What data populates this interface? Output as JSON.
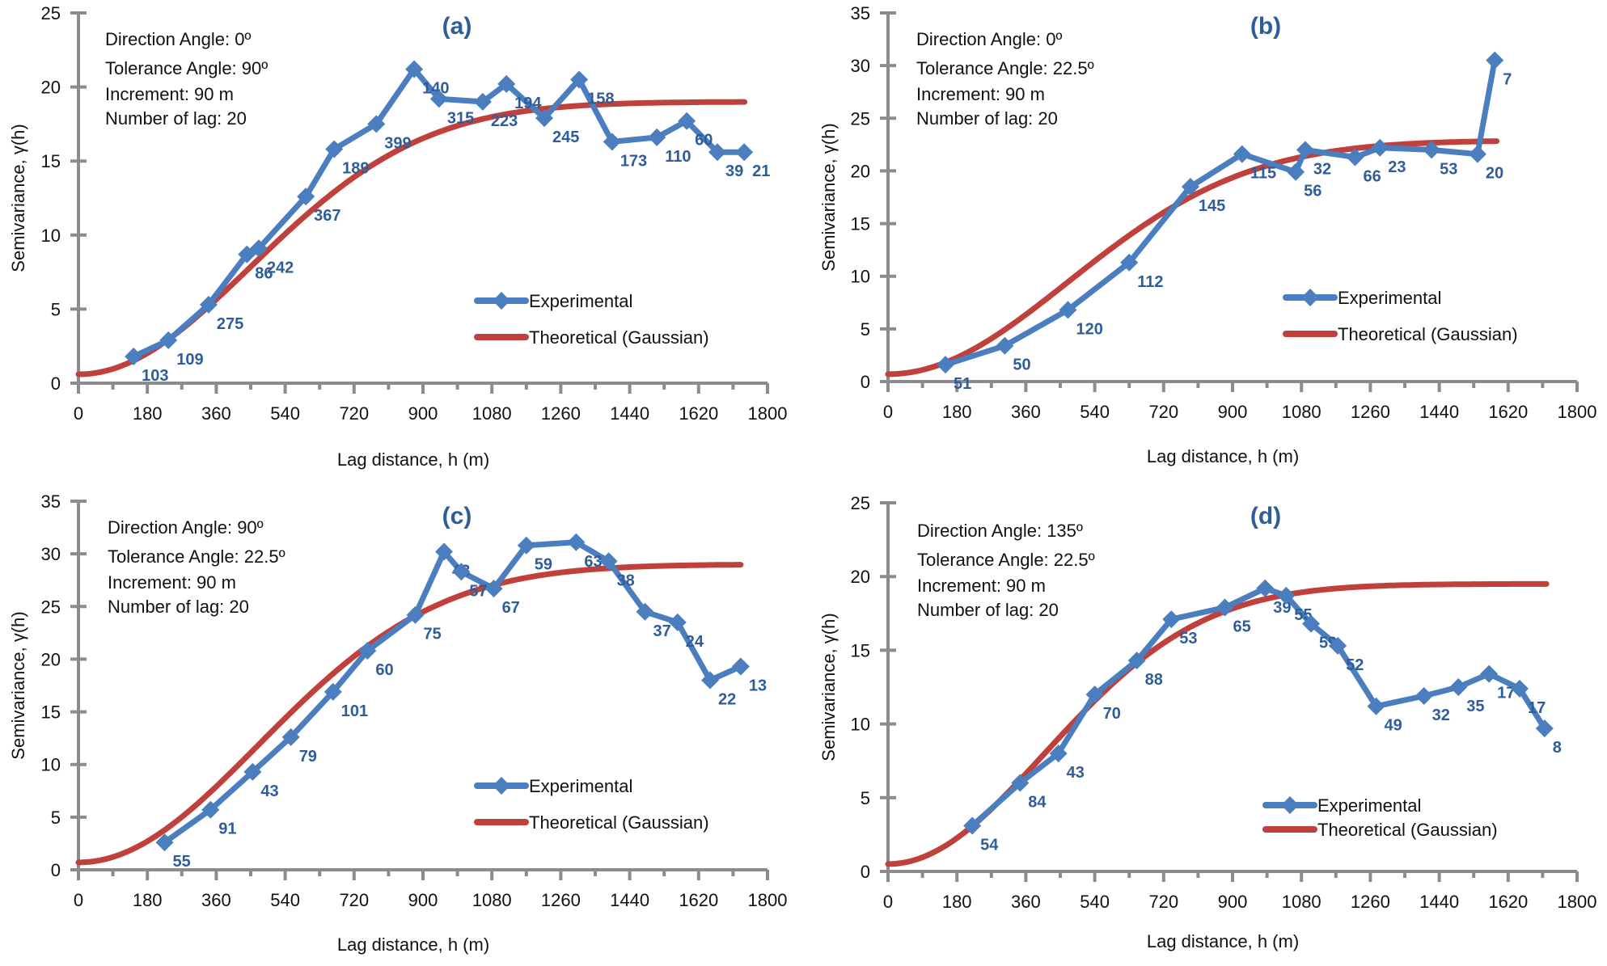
{
  "chart_data": [
    {
      "type": "line",
      "title": "(a)",
      "xlabel": "Lag distance, h (m)",
      "ylabel": "Semivariance, γ(h)",
      "xlim": [
        0,
        1800
      ],
      "ylim": [
        0,
        25
      ],
      "xticks": [
        0,
        180,
        360,
        540,
        720,
        900,
        1080,
        1260,
        1440,
        1620,
        1800
      ],
      "yticks": [
        0,
        5,
        10,
        15,
        20,
        25
      ],
      "grid": false,
      "legend_position": "center-right",
      "info": [
        "Direction Angle: 0º",
        "Tolerance Angle: 90º",
        "Increment: 90 m",
        "Number of lag: 20"
      ],
      "series": [
        {
          "name": "Experimental",
          "color": "#4a7ebf",
          "x": [
            144,
            235,
            340,
            440,
            471,
            594,
            668,
            778,
            877,
            942,
            1056,
            1118,
            1217,
            1308,
            1394,
            1511,
            1589,
            1669,
            1739
          ],
          "y": [
            1.8,
            2.9,
            5.3,
            8.7,
            9.1,
            12.6,
            15.8,
            17.5,
            21.2,
            19.2,
            19.0,
            20.2,
            17.9,
            20.5,
            16.3,
            16.6,
            17.7,
            15.6,
            15.6
          ],
          "labels": [
            "103",
            "109",
            "275",
            "86",
            "242",
            "367",
            "189",
            "399",
            "140",
            "315",
            "223",
            "194",
            "245",
            "158",
            "173",
            "110",
            "60",
            "39",
            "21"
          ]
        },
        {
          "name": "Theoretical (Gaussian)",
          "color": "#c0413c",
          "model": "gaussian",
          "nugget": 0.6,
          "sill": 19.0,
          "range": 1100,
          "x_end": 1740
        }
      ]
    },
    {
      "type": "line",
      "title": "(b)",
      "xlabel": "Lag distance, h (m)",
      "ylabel": "Semivariance, γ(h)",
      "xlim": [
        0,
        1800
      ],
      "ylim": [
        0,
        35
      ],
      "xticks": [
        0,
        180,
        360,
        540,
        720,
        900,
        1080,
        1260,
        1440,
        1620,
        1800
      ],
      "yticks": [
        0,
        5,
        10,
        15,
        20,
        25,
        30,
        35
      ],
      "grid": false,
      "legend_position": "center-right",
      "info": [
        "Direction Angle: 0º",
        "Tolerance Angle: 22.5º",
        "Increment: 90 m",
        "Number of lag: 20"
      ],
      "series": [
        {
          "name": "Experimental",
          "color": "#4a7ebf",
          "x": [
            150,
            305,
            470,
            630,
            790,
            925,
            1065,
            1090,
            1220,
            1285,
            1420,
            1540,
            1585
          ],
          "y": [
            1.6,
            3.4,
            6.8,
            11.3,
            18.5,
            21.6,
            19.9,
            22.0,
            21.3,
            22.2,
            22.0,
            21.6,
            30.5
          ],
          "labels": [
            "51",
            "50",
            "120",
            "112",
            "145",
            "115",
            "56",
            "32",
            "66",
            "23",
            "53",
            "20",
            "7"
          ]
        },
        {
          "name": "Theoretical (Gaussian)",
          "color": "#c0413c",
          "model": "gaussian",
          "nugget": 0.7,
          "sill": 22.9,
          "range": 1150,
          "x_end": 1590
        }
      ]
    },
    {
      "type": "line",
      "title": "(c)",
      "xlabel": "Lag distance, h (m)",
      "ylabel": "Semivariance, γ(h)",
      "xlim": [
        0,
        1800
      ],
      "ylim": [
        0,
        35
      ],
      "xticks": [
        0,
        180,
        360,
        540,
        720,
        900,
        1080,
        1260,
        1440,
        1620,
        1800
      ],
      "yticks": [
        0,
        5,
        10,
        15,
        20,
        25,
        30,
        35
      ],
      "grid": false,
      "legend_position": "center-right",
      "info": [
        "Direction Angle: 90º",
        "Tolerance Angle: 22.5º",
        "Increment: 90 m",
        "Number of lag: 20"
      ],
      "series": [
        {
          "name": "Experimental",
          "color": "#4a7ebf",
          "x": [
            225,
            345,
            455,
            555,
            665,
            755,
            880,
            955,
            1000,
            1085,
            1170,
            1300,
            1385,
            1480,
            1565,
            1650,
            1730
          ],
          "y": [
            2.6,
            5.7,
            9.3,
            12.6,
            16.9,
            20.8,
            24.2,
            30.2,
            28.3,
            26.7,
            30.8,
            31.1,
            29.3,
            24.5,
            23.5,
            18.0,
            19.3
          ],
          "labels": [
            "55",
            "91",
            "43",
            "79",
            "101",
            "60",
            "75",
            "43",
            "57",
            "67",
            "59",
            "63",
            "38",
            "37",
            "24",
            "22",
            "13"
          ]
        },
        {
          "name": "Theoretical (Gaussian)",
          "color": "#c0413c",
          "model": "gaussian",
          "nugget": 0.7,
          "sill": 29.0,
          "range": 1150,
          "x_end": 1730
        }
      ]
    },
    {
      "type": "line",
      "title": "(d)",
      "xlabel": "Lag distance, h (m)",
      "ylabel": "Semivariance, γ(h)",
      "xlim": [
        0,
        1800
      ],
      "ylim": [
        0,
        25
      ],
      "xticks": [
        0,
        180,
        360,
        540,
        720,
        900,
        1080,
        1260,
        1440,
        1620,
        1800
      ],
      "yticks": [
        0,
        5,
        10,
        15,
        20,
        25
      ],
      "grid": false,
      "legend_position": "bottom-right",
      "info": [
        "Direction Angle: 135º",
        "Tolerance Angle: 22.5º",
        "Increment: 90 m",
        "Number of lag: 20"
      ],
      "series": [
        {
          "name": "Experimental",
          "color": "#4a7ebf",
          "x": [
            220,
            345,
            445,
            540,
            650,
            740,
            880,
            985,
            1040,
            1105,
            1175,
            1275,
            1400,
            1490,
            1570,
            1650,
            1715
          ],
          "y": [
            3.1,
            6.0,
            8.0,
            12.0,
            14.3,
            17.1,
            17.9,
            19.2,
            18.7,
            16.8,
            15.3,
            11.2,
            11.9,
            12.5,
            13.4,
            12.4,
            9.7
          ],
          "labels": [
            "54",
            "84",
            "43",
            "70",
            "88",
            "53",
            "65",
            "39",
            "55",
            "59",
            "52",
            "49",
            "32",
            "35",
            "17",
            "17",
            "8"
          ]
        },
        {
          "name": "Theoretical (Gaussian)",
          "color": "#c0413c",
          "model": "gaussian",
          "nugget": 0.5,
          "sill": 19.5,
          "range": 1000,
          "x_end": 1720
        }
      ]
    }
  ]
}
